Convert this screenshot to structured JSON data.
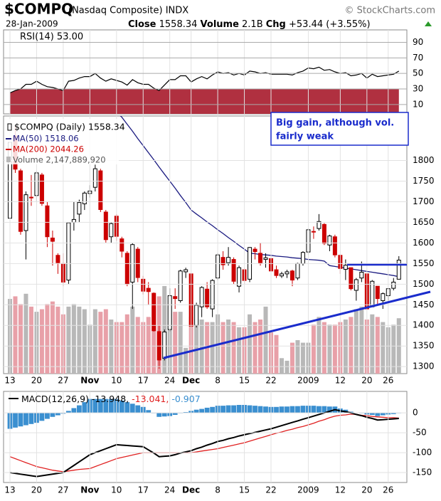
{
  "header": {
    "symbol": "$COMPQ",
    "name": "(Nasdaq Composite) INDX",
    "source": "© StockCharts.com",
    "date": "28-Jan-2009",
    "close_label": "Close",
    "close": "1558.34",
    "volume_label": "Volume",
    "volume": "2.1B",
    "chg_label": "Chg",
    "chg": "+53.44 (+3.55%)"
  },
  "chart_data": {
    "type": "candlestick",
    "legend": {
      "price": "$COMPQ (Daily) 1558.34",
      "ma50": "MA(50) 1518.06",
      "ma200": "MA(200) 2044.26",
      "volume": "Volume 2,147,889,920"
    },
    "colors": {
      "up": "#000000",
      "down": "#cc0000",
      "ma50": "#1a1a80",
      "volume_up": "#b8b8b8",
      "volume_down": "#e8a0a8"
    },
    "annotation": [
      "Big gain, although vol.",
      "fairly weak"
    ],
    "categories": [
      "13",
      null,
      null,
      null,
      null,
      "20",
      null,
      null,
      null,
      null,
      "27",
      null,
      null,
      null,
      null,
      "Nov",
      null,
      null,
      null,
      null,
      "10",
      null,
      null,
      null,
      null,
      "17",
      null,
      null,
      null,
      null,
      "24",
      null,
      null,
      null,
      "Dec",
      null,
      null,
      null,
      null,
      "8",
      null,
      null,
      null,
      null,
      "15",
      null,
      null,
      null,
      null,
      "22",
      null,
      null,
      null,
      null,
      null,
      null,
      "2009",
      null,
      null,
      null,
      null,
      null,
      "12",
      null,
      null,
      null,
      null,
      "20",
      null,
      null,
      null,
      "26",
      null,
      null
    ],
    "open": [
      1660,
      1860,
      1775,
      1630,
      1710,
      1715,
      1765,
      1690,
      1612,
      1570,
      1550,
      1510,
      1650,
      1670,
      1695,
      1720,
      1735,
      1775,
      1675,
      1615,
      1665,
      1610,
      1575,
      1505,
      1585,
      1512,
      1490,
      1478,
      1385,
      1320,
      1390,
      1470,
      1460,
      1530,
      1525,
      1400,
      1445,
      1488,
      1440,
      1515,
      1565,
      1552,
      1560,
      1495,
      1535,
      1512,
      1585,
      1575,
      1560,
      1562,
      1535,
      1520,
      1525,
      1532,
      1515,
      1550,
      1578,
      1628,
      1635,
      1645,
      1595,
      1615,
      1570,
      1536,
      1540,
      1485,
      1515,
      1525,
      1445,
      1495,
      1460,
      1472,
      1490,
      1512
    ],
    "high": [
      1850,
      1885,
      1780,
      1725,
      1765,
      1775,
      1770,
      1700,
      1630,
      1575,
      1575,
      1650,
      1700,
      1705,
      1725,
      1740,
      1790,
      1780,
      1680,
      1650,
      1670,
      1615,
      1580,
      1600,
      1590,
      1520,
      1505,
      1480,
      1400,
      1390,
      1490,
      1490,
      1535,
      1540,
      1525,
      1455,
      1495,
      1505,
      1512,
      1575,
      1580,
      1590,
      1565,
      1545,
      1540,
      1590,
      1590,
      1600,
      1575,
      1565,
      1545,
      1530,
      1535,
      1535,
      1552,
      1580,
      1635,
      1640,
      1670,
      1648,
      1620,
      1620,
      1572,
      1560,
      1540,
      1515,
      1555,
      1525,
      1510,
      1495,
      1480,
      1490,
      1515,
      1568
    ],
    "low": [
      1655,
      1770,
      1620,
      1560,
      1690,
      1700,
      1690,
      1590,
      1545,
      1525,
      1495,
      1500,
      1630,
      1650,
      1680,
      1710,
      1725,
      1675,
      1600,
      1600,
      1605,
      1565,
      1495,
      1440,
      1505,
      1475,
      1450,
      1385,
      1295,
      1315,
      1385,
      1440,
      1455,
      1515,
      1395,
      1395,
      1420,
      1440,
      1420,
      1510,
      1535,
      1545,
      1500,
      1480,
      1500,
      1505,
      1560,
      1545,
      1540,
      1520,
      1515,
      1515,
      1515,
      1495,
      1510,
      1545,
      1572,
      1610,
      1630,
      1595,
      1580,
      1565,
      1525,
      1510,
      1485,
      1460,
      1505,
      1438,
      1445,
      1450,
      1440,
      1460,
      1485,
      1512
    ],
    "close": [
      1844,
      1779,
      1628,
      1717,
      1711,
      1770,
      1696,
      1615,
      1604,
      1552,
      1505,
      1649,
      1657,
      1698,
      1721,
      1726,
      1780,
      1681,
      1608,
      1647,
      1616,
      1580,
      1500,
      1596,
      1516,
      1483,
      1482,
      1387,
      1316,
      1384,
      1472,
      1465,
      1532,
      1535,
      1398,
      1449,
      1492,
      1445,
      1509,
      1571,
      1547,
      1565,
      1507,
      1540,
      1509,
      1589,
      1579,
      1552,
      1564,
      1532,
      1521,
      1525,
      1530,
      1510,
      1550,
      1577,
      1632,
      1628,
      1652,
      1599,
      1617,
      1571,
      1538,
      1546,
      1489,
      1511,
      1529,
      1440,
      1507,
      1465,
      1477,
      1489,
      1505,
      1558.34
    ],
    "volume": [
      2.9,
      3.0,
      2.7,
      3.1,
      2.6,
      2.4,
      2.5,
      2.7,
      2.8,
      2.6,
      2.3,
      2.6,
      2.7,
      2.6,
      2.5,
      1.9,
      2.5,
      2.4,
      2.5,
      2.1,
      2.0,
      2.0,
      2.3,
      2.6,
      2.2,
      2.0,
      2.2,
      2.6,
      3.0,
      3.4,
      2.6,
      2.4,
      2.4,
      1.0,
      2.2,
      2.1,
      2.1,
      2.0,
      2.0,
      2.3,
      2.0,
      2.1,
      2.0,
      1.8,
      1.8,
      2.3,
      2.0,
      2.1,
      2.6,
      1.6,
      1.5,
      0.6,
      0.5,
      1.2,
      1.3,
      1.2,
      1.2,
      1.9,
      2.2,
      2.0,
      1.9,
      1.9,
      2.0,
      2.1,
      2.2,
      2.5,
      2.6,
      2.1,
      2.3,
      2.2,
      2.0,
      1.8,
      1.9,
      2.15
    ],
    "volume_lim": [
      0,
      10
    ],
    "ma50": [
      2150,
      2138,
      2127,
      2115,
      2103,
      2092,
      2080,
      2068,
      2057,
      2045,
      2033,
      2022,
      2010,
      1998,
      1987,
      1975,
      1963,
      1952,
      1940,
      1928,
      1917,
      1905,
      1888,
      1871,
      1853,
      1836,
      1819,
      1802,
      1784,
      1767,
      1750,
      1733,
      1715,
      1698,
      1680,
      1670,
      1661,
      1651,
      1642,
      1632,
      1623,
      1613,
      1604,
      1594,
      1585,
      1575,
      1574,
      1572,
      1571,
      1570,
      1568,
      1567,
      1566,
      1564,
      1563,
      1562,
      1560,
      1559,
      1558,
      1556,
      1545,
      1543,
      1541,
      1539,
      1537,
      1535,
      1533,
      1531,
      1529,
      1527,
      1525,
      1523,
      1521,
      1518.06
    ],
    "ylim": [
      1283,
      1908
    ],
    "yticks": [
      1300,
      1350,
      1400,
      1450,
      1500,
      1550,
      1600,
      1650,
      1700,
      1750,
      1800
    ],
    "grid": true,
    "rsi": {
      "label": "RSI(14) 53.00",
      "color": "#000000",
      "fill": "#b03040",
      "values": [
        25,
        28,
        30,
        36,
        36,
        40,
        36,
        33,
        32,
        30,
        28,
        40,
        41,
        44,
        46,
        46,
        50,
        44,
        40,
        43,
        41,
        39,
        35,
        42,
        38,
        36,
        36,
        31,
        28,
        35,
        42,
        42,
        47,
        47,
        39,
        43,
        46,
        43,
        48,
        52,
        50,
        51,
        48,
        50,
        48,
        53,
        52,
        50,
        51,
        49,
        49,
        49,
        49,
        48,
        51,
        53,
        57,
        56,
        58,
        54,
        55,
        52,
        50,
        51,
        47,
        48,
        50,
        44,
        49,
        46,
        47,
        48,
        49,
        53
      ],
      "ylim": [
        -2,
        106
      ],
      "yticks": [
        10,
        30,
        50,
        70,
        90
      ]
    },
    "macd": {
      "legend": [
        "MACD(12,26,9)",
        "-13.948,",
        "-13.041,",
        "-0.907"
      ],
      "colors": [
        "#000000",
        "#000000",
        "#e02020",
        "#3a8fd0"
      ],
      "macd": [
        -150,
        -152,
        -154,
        -156,
        -158,
        -160,
        -158,
        -156,
        -154,
        -152,
        -150,
        -141,
        -132,
        -123,
        -114,
        -105,
        -100,
        -95,
        -90,
        -85,
        -80,
        -81,
        -82,
        -83,
        -84,
        -85,
        -93,
        -101,
        -110,
        -109,
        -108,
        -105,
        -101,
        -98,
        -95,
        -90,
        -86,
        -81,
        -77,
        -72,
        -69,
        -65,
        -62,
        -58,
        -55,
        -52,
        -49,
        -46,
        -43,
        -40,
        -36,
        -32,
        -28,
        -24,
        -20,
        -16,
        -12,
        -8,
        -4,
        0,
        4,
        8,
        5,
        3,
        0,
        -4,
        -7,
        -11,
        -14,
        -18,
        -17,
        -16,
        -15,
        -13.948
      ],
      "signal": [
        -110,
        -115,
        -120,
        -125,
        -130,
        -135,
        -138,
        -141,
        -144,
        -146,
        -148,
        -146,
        -144,
        -142,
        -141,
        -140,
        -135,
        -130,
        -125,
        -120,
        -115,
        -112,
        -109,
        -106,
        -103,
        -100,
        -100,
        -100,
        -100,
        -100,
        -100,
        -100,
        -100,
        -100,
        -100,
        -98,
        -96,
        -94,
        -92,
        -90,
        -87,
        -84,
        -81,
        -78,
        -75,
        -71,
        -67,
        -63,
        -59,
        -55,
        -51,
        -48,
        -44,
        -41,
        -37,
        -34,
        -30,
        -26,
        -21,
        -17,
        -12,
        -8,
        -6,
        -5,
        -3,
        -4,
        -6,
        -7,
        -9,
        -10,
        -11,
        -12,
        -12,
        -13.041
      ],
      "hist": [
        -40,
        -37,
        -34,
        -31,
        -28,
        -25,
        -20,
        -15,
        -10,
        -6,
        -2,
        5,
        12,
        19,
        27,
        35,
        35,
        35,
        35,
        35,
        35,
        31,
        27,
        23,
        19,
        15,
        7,
        -1,
        -10,
        -9,
        -8,
        -5,
        -1,
        2,
        5,
        8,
        10,
        13,
        15,
        18,
        18,
        19,
        19,
        20,
        20,
        19,
        18,
        17,
        16,
        15,
        15,
        16,
        16,
        17,
        17,
        18,
        18,
        18,
        17,
        17,
        16,
        16,
        11,
        8,
        3,
        0,
        -1,
        -4,
        -5,
        -8,
        -6,
        -4,
        -3,
        -0.907
      ],
      "ylim": [
        -175,
        54
      ],
      "yticks": [
        0,
        -50,
        -100,
        -150
      ]
    }
  }
}
